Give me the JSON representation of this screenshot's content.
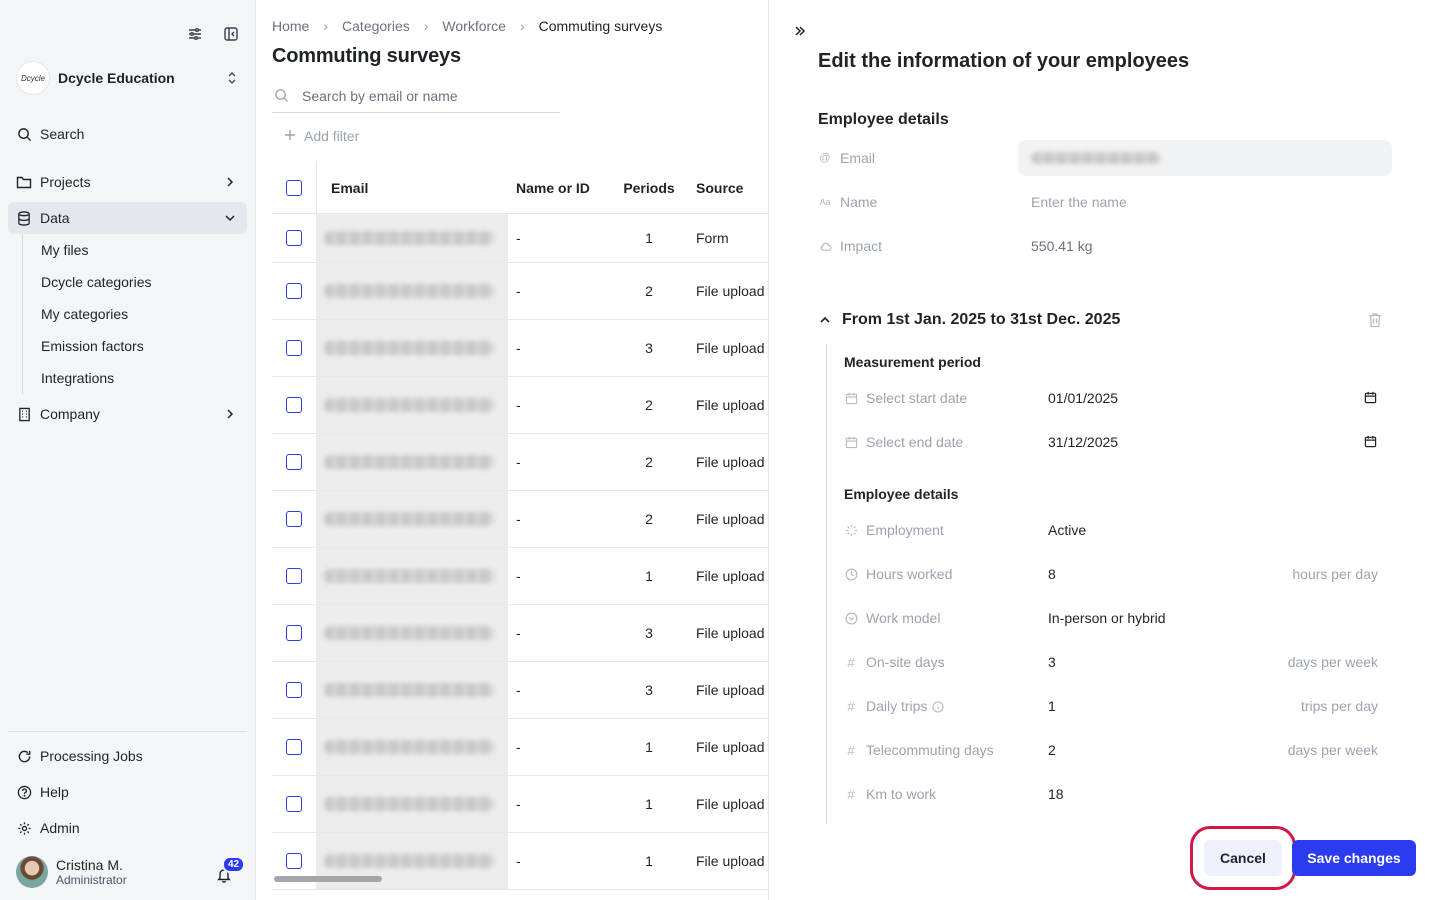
{
  "sidebar": {
    "org_logo_text": "Dcycle",
    "org_name": "Dcycle Education",
    "nav": {
      "search": "Search",
      "projects": "Projects",
      "data": "Data",
      "company": "Company"
    },
    "data_sub": [
      "My files",
      "Dcycle categories",
      "My categories",
      "Emission factors",
      "Integrations"
    ],
    "bottom": {
      "processing": "Processing Jobs",
      "help": "Help",
      "admin": "Admin"
    },
    "user": {
      "name": "Cristina M.",
      "role": "Administrator",
      "notifications": "42"
    }
  },
  "main": {
    "breadcrumb": [
      "Home",
      "Categories",
      "Workforce",
      "Commuting surveys"
    ],
    "title": "Commuting surveys",
    "search_placeholder": "Search by email or name",
    "add_filter": "Add filter",
    "columns": {
      "email": "Email",
      "name": "Name or ID",
      "periods": "Periods",
      "source": "Source"
    },
    "rows": [
      {
        "name": "-",
        "periods": "1",
        "source": "Form"
      },
      {
        "name": "-",
        "periods": "2",
        "source": "File upload"
      },
      {
        "name": "-",
        "periods": "3",
        "source": "File upload"
      },
      {
        "name": "-",
        "periods": "2",
        "source": "File upload"
      },
      {
        "name": "-",
        "periods": "2",
        "source": "File upload"
      },
      {
        "name": "-",
        "periods": "2",
        "source": "File upload"
      },
      {
        "name": "-",
        "periods": "1",
        "source": "File upload"
      },
      {
        "name": "-",
        "periods": "3",
        "source": "File upload"
      },
      {
        "name": "-",
        "periods": "3",
        "source": "File upload"
      },
      {
        "name": "-",
        "periods": "1",
        "source": "File upload"
      },
      {
        "name": "-",
        "periods": "1",
        "source": "File upload"
      },
      {
        "name": "-",
        "periods": "1",
        "source": "File upload"
      }
    ]
  },
  "panel": {
    "title": "Edit the information of your employees",
    "details_title": "Employee details",
    "email_label": "Email",
    "name_label": "Name",
    "name_placeholder": "Enter the name",
    "impact_label": "Impact",
    "impact_value": "550.41 kg",
    "period_title": "From 1st Jan. 2025 to 31st Dec. 2025",
    "measurement_title": "Measurement period",
    "start_label": "Select start date",
    "start_value": "01/01/2025",
    "end_label": "Select end date",
    "end_value": "31/12/2025",
    "emp_details_title": "Employee details",
    "employment_label": "Employment",
    "employment_value": "Active",
    "hours_label": "Hours worked",
    "hours_value": "8",
    "hours_unit": "hours per day",
    "work_model_label": "Work model",
    "work_model_value": "In-person or hybrid",
    "onsite_label": "On-site days",
    "onsite_value": "3",
    "onsite_unit": "days per week",
    "trips_label": "Daily trips",
    "trips_value": "1",
    "trips_unit": "trips per day",
    "telecommuting_label": "Telecommuting days",
    "telecommuting_value": "2",
    "telecommuting_unit": "days per week",
    "km_label": "Km to work",
    "km_value": "18",
    "cancel": "Cancel",
    "save": "Save changes"
  },
  "colors": {
    "accent": "#2b3cf0",
    "highlight_ring": "#d2184a"
  }
}
